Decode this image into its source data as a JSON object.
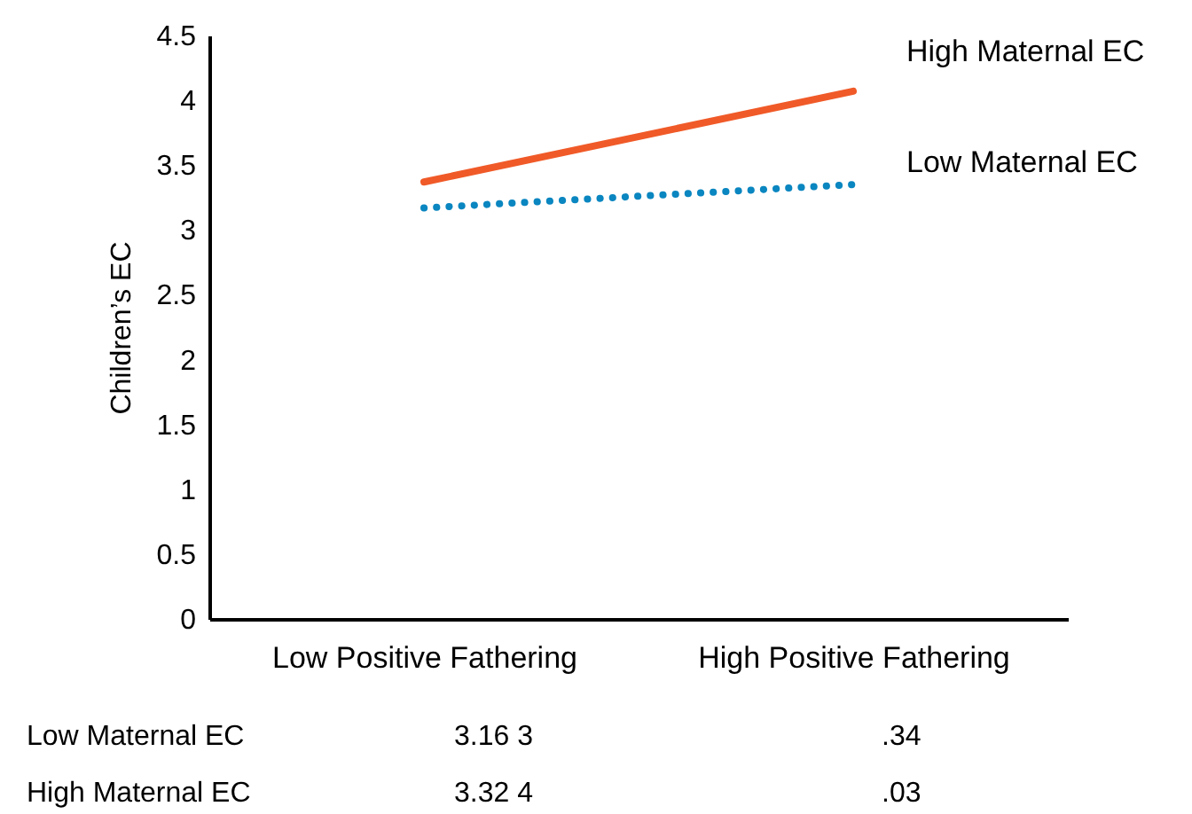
{
  "chart_data": {
    "type": "line",
    "ylabel": "Children’s EC",
    "categories": [
      "Low Positive Fathering",
      "High Positive Fathering"
    ],
    "series": [
      {
        "name": "High Maternal EC",
        "color": "#f05a28",
        "line_style": "solid",
        "values": [
          3.37,
          4.07
        ]
      },
      {
        "name": "Low Maternal EC",
        "color": "#0a86c0",
        "line_style": "dotted",
        "values": [
          3.17,
          3.35
        ]
      }
    ],
    "ylim": [
      0,
      4.5
    ],
    "yticks": [
      0,
      0.5,
      1,
      1.5,
      2,
      2.5,
      3,
      3.5,
      4,
      4.5
    ],
    "grid": false,
    "legend": false,
    "marker": "none",
    "annotations": [
      "Low Maternal EC",
      "3.16 3",
      ".34",
      "High Maternal EC",
      "3.32 4",
      ".03"
    ]
  }
}
